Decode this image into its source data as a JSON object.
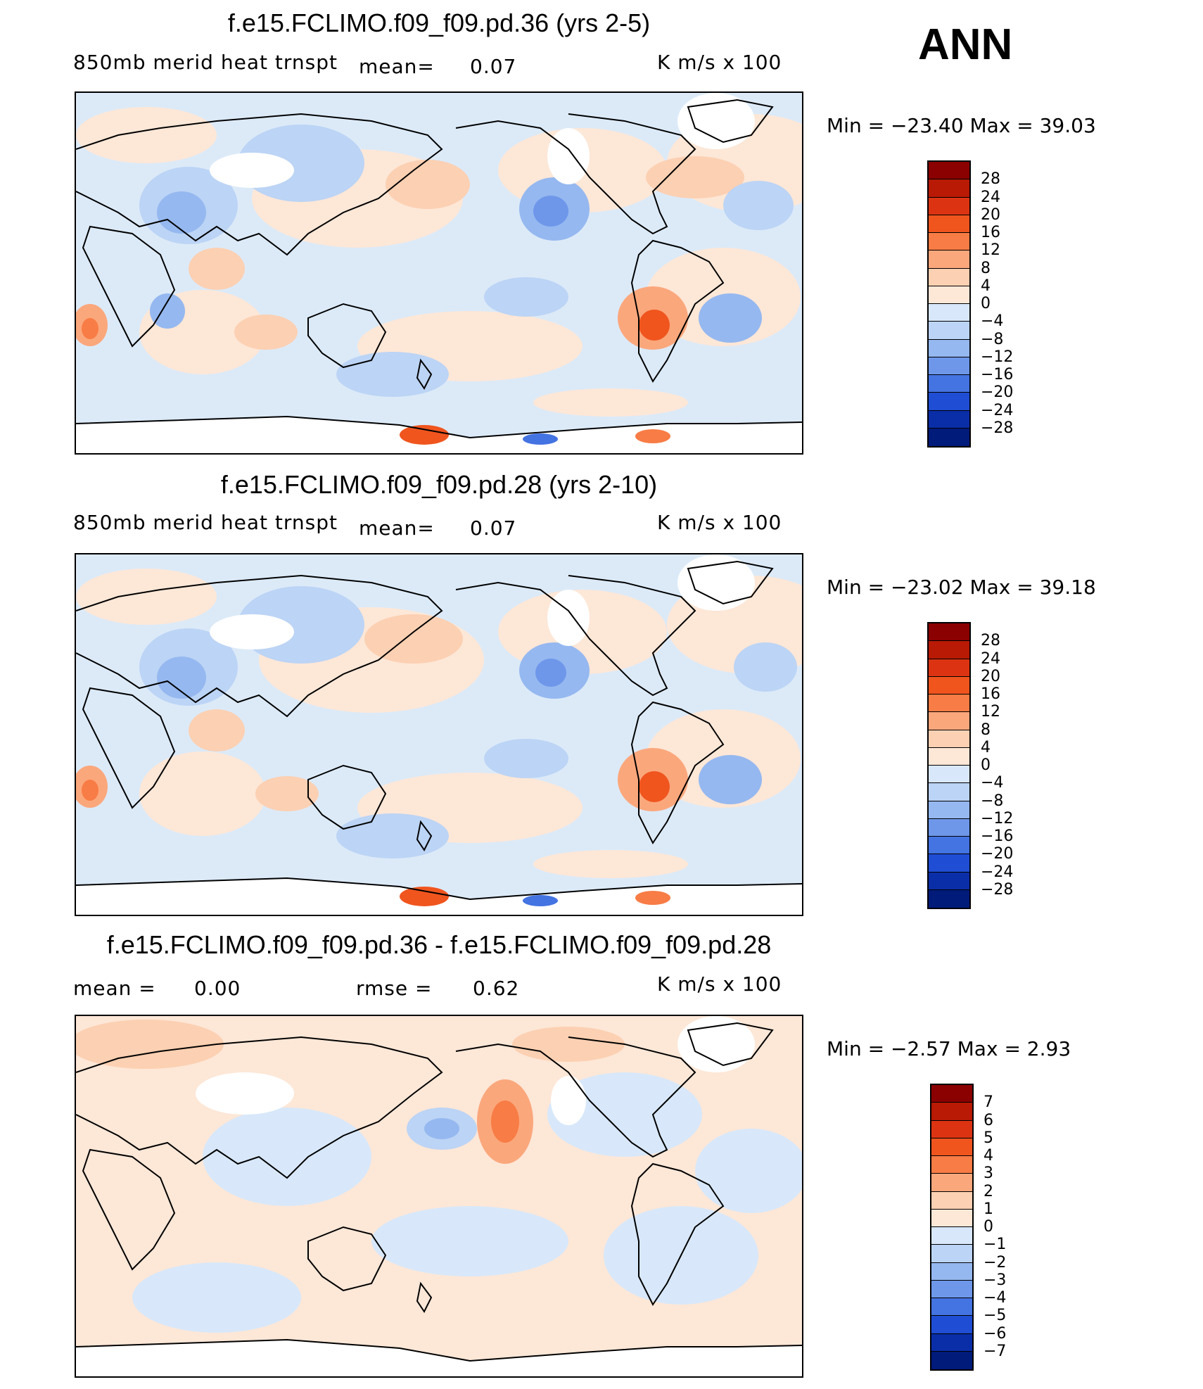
{
  "season": "ANN",
  "panels": [
    {
      "title": "f.e15.FCLIMO.f09_f09.pd.36 (yrs 2-5)",
      "left_label": "850mb merid heat trnspt",
      "mean_label": "mean=",
      "mean_value": "0.07",
      "units": "K m/s x 100",
      "min_max": "Min = −23.40 Max = 39.03",
      "colorbar": {
        "labels": [
          "28",
          "24",
          "20",
          "16",
          "12",
          "8",
          "4",
          "0",
          "−4",
          "−8",
          "−12",
          "−16",
          "−20",
          "−24",
          "−28"
        ],
        "colors": [
          "#8b0000",
          "#b81a05",
          "#dc3412",
          "#f0551e",
          "#f87c45",
          "#fba77c",
          "#fcd0b2",
          "#fde7d7",
          "#d8e8fa",
          "#bcd4f5",
          "#95b8f0",
          "#6e97ea",
          "#4473e2",
          "#1f4ed4",
          "#0a2ea8",
          "#001b7a"
        ]
      }
    },
    {
      "title": "f.e15.FCLIMO.f09_f09.pd.28 (yrs 2-10)",
      "left_label": "850mb merid heat trnspt",
      "mean_label": "mean=",
      "mean_value": "0.07",
      "units": "K m/s x 100",
      "min_max": "Min = −23.02 Max = 39.18",
      "colorbar": {
        "labels": [
          "28",
          "24",
          "20",
          "16",
          "12",
          "8",
          "4",
          "0",
          "−4",
          "−8",
          "−12",
          "−16",
          "−20",
          "−24",
          "−28"
        ],
        "colors": [
          "#8b0000",
          "#b81a05",
          "#dc3412",
          "#f0551e",
          "#f87c45",
          "#fba77c",
          "#fcd0b2",
          "#fde7d7",
          "#d8e8fa",
          "#bcd4f5",
          "#95b8f0",
          "#6e97ea",
          "#4473e2",
          "#1f4ed4",
          "#0a2ea8",
          "#001b7a"
        ]
      }
    },
    {
      "title": "f.e15.FCLIMO.f09_f09.pd.36 - f.e15.FCLIMO.f09_f09.pd.28",
      "left_label": "mean =",
      "mean_value": "0.00",
      "rmse_label": "rmse =",
      "rmse_value": "0.62",
      "units": "K m/s x 100",
      "min_max": "Min = −2.57 Max = 2.93",
      "colorbar": {
        "labels": [
          "7",
          "6",
          "5",
          "4",
          "3",
          "2",
          "1",
          "0",
          "−1",
          "−2",
          "−3",
          "−4",
          "−5",
          "−6",
          "−7"
        ],
        "colors": [
          "#8b0000",
          "#b81a05",
          "#dc3412",
          "#f0551e",
          "#f87c45",
          "#fba77c",
          "#fcd0b2",
          "#fde7d7",
          "#d8e8fa",
          "#bcd4f5",
          "#95b8f0",
          "#6e97ea",
          "#4473e2",
          "#1f4ed4",
          "#0a2ea8",
          "#001b7a"
        ]
      }
    }
  ]
}
